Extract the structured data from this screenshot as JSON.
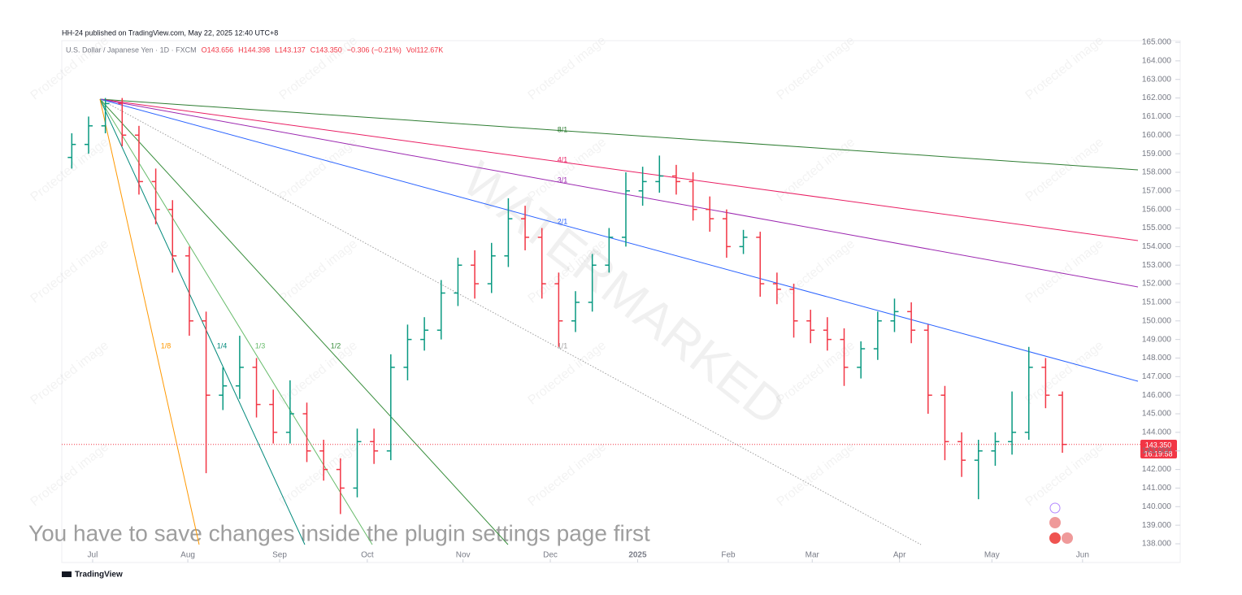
{
  "header": "HH-24 published on TradingView.com, May 22, 2025 12:40 UTC+8",
  "footer_brand": "TradingView",
  "notice": "You have to save changes inside the plugin settings page first",
  "watermark": "WATERMARKED",
  "protected_text": "Protected image",
  "chart_data": {
    "type": "ohlc",
    "symbol": "U.S. Dollar / Japanese Yen · 1D · FXCM",
    "legend_values": [
      "O143.656",
      "H144.398",
      "L143.137",
      "C143.350",
      "−0.306 (−0.21%)",
      "Vol112.67K"
    ],
    "last_price": {
      "value": 143.35,
      "label": "143.350"
    },
    "countdown": "16:19:58",
    "up_color": "#089981",
    "down_color": "#f23645",
    "categories": [
      null,
      null,
      null,
      null,
      null,
      null,
      null,
      null,
      null,
      null,
      null,
      null,
      null,
      null,
      null,
      null,
      null,
      null,
      null,
      null,
      null,
      null,
      null,
      null,
      null,
      null,
      null,
      null,
      null,
      null,
      null,
      null,
      null,
      null,
      null,
      null,
      null,
      null,
      null,
      null,
      null,
      null,
      null,
      null,
      null,
      null,
      null,
      null,
      null,
      null,
      null,
      null,
      null,
      null,
      null,
      null,
      null,
      null,
      null,
      null
    ],
    "open": [
      158.8,
      159.5,
      160.5,
      161.7,
      160,
      157.5,
      156,
      153.5,
      150,
      146,
      146.5,
      147.5,
      145.5,
      144,
      145,
      143,
      142,
      141,
      143.5,
      143,
      147.5,
      149,
      149.5,
      151.5,
      153,
      152,
      153.5,
      155.5,
      154.5,
      152,
      150,
      151,
      153,
      154.5,
      157,
      157.5,
      157.8,
      157.5,
      156,
      155.5,
      154,
      154.5,
      152,
      151.7,
      150,
      149.5,
      149,
      147.5,
      148.5,
      150,
      150.5,
      149.5,
      146,
      143.5,
      142.5,
      143,
      143.5,
      144,
      147.5,
      146
    ],
    "high": [
      160.1,
      161,
      162,
      162,
      160.5,
      158.2,
      156.5,
      154,
      150.5,
      147.5,
      149.2,
      148,
      146.3,
      146.8,
      145.6,
      143.6,
      142.6,
      144.2,
      144.2,
      148.2,
      149.8,
      150.2,
      152.2,
      153.4,
      153.8,
      154.2,
      156.6,
      156.2,
      155,
      152.6,
      151.6,
      153.6,
      155,
      158,
      158.3,
      158.9,
      158.4,
      158,
      156.7,
      156,
      154.9,
      154.8,
      152.6,
      152,
      150.6,
      150.2,
      149.6,
      148.9,
      150.5,
      151.2,
      151,
      149.8,
      146.5,
      144,
      143.6,
      144,
      146.2,
      148.6,
      148,
      146.2
    ],
    "low": [
      158.2,
      159,
      160.1,
      159.4,
      156.8,
      155.2,
      152.6,
      149.2,
      141.8,
      145.2,
      145.8,
      144.8,
      143.4,
      143.4,
      142.4,
      141.4,
      139.6,
      140.5,
      142.3,
      142.5,
      146.8,
      148.4,
      149,
      150.8,
      151.2,
      151.5,
      152.9,
      153.8,
      151.2,
      148.6,
      149.4,
      150.5,
      152.6,
      154,
      156.2,
      156.9,
      156.8,
      155.4,
      154.8,
      153.4,
      153.6,
      151.3,
      150.9,
      149.1,
      148.8,
      148.4,
      146.5,
      146.9,
      147.9,
      149.4,
      148.8,
      145,
      142.5,
      141.6,
      140.4,
      142.2,
      142.8,
      143.6,
      145.3,
      142.9
    ],
    "close": [
      159.5,
      160.5,
      161.7,
      160,
      157.5,
      156,
      153.5,
      150,
      146,
      146.5,
      147.5,
      145.5,
      144,
      145,
      143,
      142,
      141,
      143.5,
      143,
      147.5,
      149,
      149.5,
      151.5,
      153,
      152,
      153.5,
      155.5,
      154.5,
      152,
      150,
      151,
      153,
      154.5,
      157,
      157.5,
      157.8,
      157.5,
      156,
      155.5,
      154,
      154.5,
      152,
      151.7,
      150,
      149.5,
      149,
      147.5,
      148.5,
      150,
      150.5,
      149.5,
      146,
      143.5,
      142.5,
      143,
      143.5,
      144,
      147.5,
      146,
      143.35
    ],
    "xlim": [
      0,
      64
    ],
    "xticks": [
      {
        "value": 1.74,
        "label": "Jul"
      },
      {
        "value": 7.41,
        "label": "Aug"
      },
      {
        "value": 12.88,
        "label": "Sep"
      },
      {
        "value": 18.1,
        "label": "Oct"
      },
      {
        "value": 23.8,
        "label": "Nov"
      },
      {
        "value": 29.0,
        "label": "Dec"
      },
      {
        "value": 34.2,
        "label": "2025"
      },
      {
        "value": 39.6,
        "label": "Feb"
      },
      {
        "value": 44.6,
        "label": "Mar"
      },
      {
        "value": 49.8,
        "label": "Apr"
      },
      {
        "value": 55.3,
        "label": "May"
      },
      {
        "value": 60.7,
        "label": "Jun"
      }
    ],
    "ylim": [
      138,
      165
    ],
    "yticks": [
      {
        "value": 138,
        "label": "138.000"
      },
      {
        "value": 139,
        "label": "139.000"
      },
      {
        "value": 140,
        "label": "140.000"
      },
      {
        "value": 141,
        "label": "141.000"
      },
      {
        "value": 142,
        "label": "142.000"
      },
      {
        "value": 143,
        "label": "143.000"
      },
      {
        "value": 144,
        "label": "144.000"
      },
      {
        "value": 145,
        "label": "145.000"
      },
      {
        "value": 146,
        "label": "146.000"
      },
      {
        "value": 147,
        "label": "147.000"
      },
      {
        "value": 148,
        "label": "148.000"
      },
      {
        "value": 149,
        "label": "149.000"
      },
      {
        "value": 150,
        "label": "150.000"
      },
      {
        "value": 151,
        "label": "151.000"
      },
      {
        "value": 152,
        "label": "152.000"
      },
      {
        "value": 153,
        "label": "153.000"
      },
      {
        "value": 154,
        "label": "154.000"
      },
      {
        "value": 155,
        "label": "155.000"
      },
      {
        "value": 156,
        "label": "156.000"
      },
      {
        "value": 157,
        "label": "157.000"
      },
      {
        "value": 158,
        "label": "158.000"
      },
      {
        "value": 159,
        "label": "159.000"
      },
      {
        "value": 160,
        "label": "160.000"
      },
      {
        "value": 161,
        "label": "161.000"
      },
      {
        "value": 162,
        "label": "162.000"
      },
      {
        "value": 163,
        "label": "163.000"
      },
      {
        "value": 164,
        "label": "164.000"
      },
      {
        "value": 165,
        "label": "165.000"
      }
    ],
    "fan": {
      "labels": [
        "8/1",
        "4/1",
        "3/1",
        "2/1",
        "1/1",
        "1/2",
        "1/3",
        "1/4",
        "1/8"
      ],
      "colors": [
        "#2e7d32",
        "#e91e63",
        "#9c27b0",
        "#2962ff",
        "#9e9e9e",
        "#388e3c",
        "#66bb6a",
        "#00897b",
        "#ff9800"
      ]
    }
  }
}
